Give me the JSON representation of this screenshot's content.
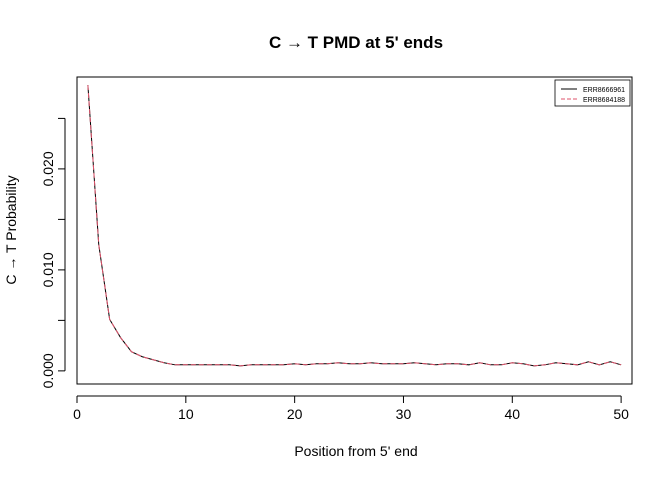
{
  "chart_data": {
    "type": "line",
    "title": "C → T PMD at 5' ends",
    "xlabel": "Position from 5' end",
    "ylabel": "C → T Probability",
    "xlim": [
      0,
      51
    ],
    "ylim": [
      -0.0013,
      0.0291
    ],
    "x_ticks": [
      0,
      10,
      20,
      30,
      40,
      50
    ],
    "y_ticks": [
      0.0,
      0.005,
      0.01,
      0.015,
      0.02,
      0.025
    ],
    "y_tick_labels": [
      "0.000",
      "",
      "0.010",
      "",
      "0.020",
      ""
    ],
    "grid": false,
    "legend_position": "top-right",
    "x": [
      1,
      2,
      3,
      4,
      5,
      6,
      7,
      8,
      9,
      10,
      11,
      12,
      13,
      14,
      15,
      16,
      17,
      18,
      19,
      20,
      21,
      22,
      23,
      24,
      25,
      26,
      27,
      28,
      29,
      30,
      31,
      32,
      33,
      34,
      35,
      36,
      37,
      38,
      39,
      40,
      41,
      42,
      43,
      44,
      45,
      46,
      47,
      48,
      49,
      50
    ],
    "series": [
      {
        "name": "ERR8666961",
        "color": "#000000",
        "dash": "solid",
        "values": [
          0.0283,
          0.0125,
          0.0051,
          0.0033,
          0.0019,
          0.0014,
          0.0011,
          0.0008,
          0.0006,
          0.0006,
          0.0006,
          0.0006,
          0.0006,
          0.0006,
          0.0005,
          0.0006,
          0.0006,
          0.0006,
          0.0006,
          0.0007,
          0.0006,
          0.0007,
          0.0007,
          0.0008,
          0.0007,
          0.0007,
          0.0008,
          0.0007,
          0.0007,
          0.0007,
          0.0008,
          0.0007,
          0.0006,
          0.0007,
          0.0007,
          0.0006,
          0.0008,
          0.0006,
          0.0006,
          0.0008,
          0.0007,
          0.0005,
          0.0006,
          0.0008,
          0.0007,
          0.0006,
          0.0009,
          0.0006,
          0.0009,
          0.0006
        ]
      },
      {
        "name": "ERR8684188",
        "color": "#df536b",
        "dash": "dashed",
        "values": [
          0.0283,
          0.0125,
          0.0051,
          0.0033,
          0.0019,
          0.0014,
          0.0011,
          0.0008,
          0.0006,
          0.0006,
          0.0006,
          0.0006,
          0.0006,
          0.0006,
          0.0005,
          0.0006,
          0.0006,
          0.0006,
          0.0006,
          0.0007,
          0.0006,
          0.0007,
          0.0007,
          0.0008,
          0.0007,
          0.0007,
          0.0008,
          0.0007,
          0.0007,
          0.0007,
          0.0008,
          0.0007,
          0.0006,
          0.0007,
          0.0007,
          0.0006,
          0.0008,
          0.0006,
          0.0006,
          0.0008,
          0.0007,
          0.0005,
          0.0006,
          0.0008,
          0.0007,
          0.0006,
          0.0009,
          0.0006,
          0.0009,
          0.0006
        ]
      }
    ]
  }
}
